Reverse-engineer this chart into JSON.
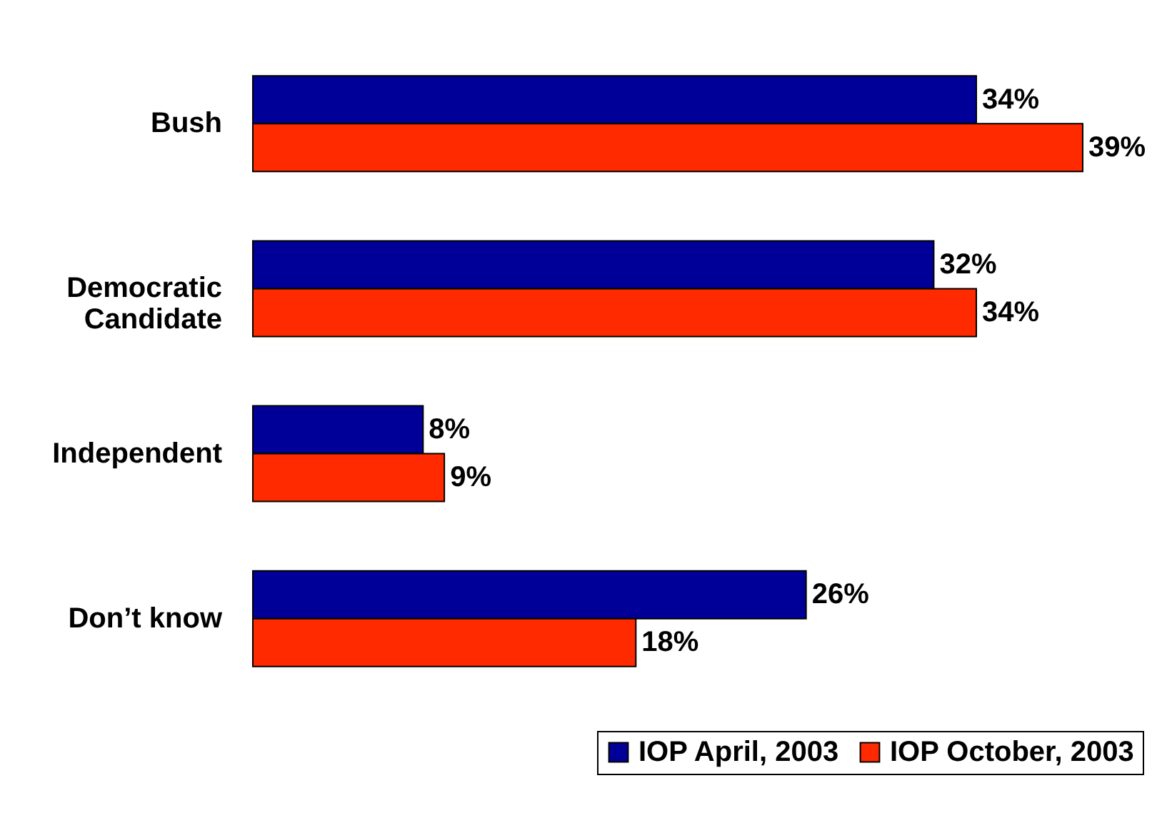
{
  "chart_data": {
    "type": "bar",
    "orientation": "horizontal",
    "categories": [
      "Bush",
      "Democratic Candidate",
      "Independent",
      "Don’t know"
    ],
    "series": [
      {
        "name": "IOP April, 2003",
        "color": "#000099",
        "values": [
          34,
          32,
          8,
          26
        ],
        "value_labels": [
          "34%",
          "32%",
          "8%",
          "26%"
        ]
      },
      {
        "name": "IOP October, 2003",
        "color": "#ff2a00",
        "values": [
          39,
          34,
          9,
          18
        ],
        "value_labels": [
          "39%",
          "34%",
          "9%",
          "18%"
        ]
      }
    ],
    "legend": "bottom right",
    "grid": false
  }
}
